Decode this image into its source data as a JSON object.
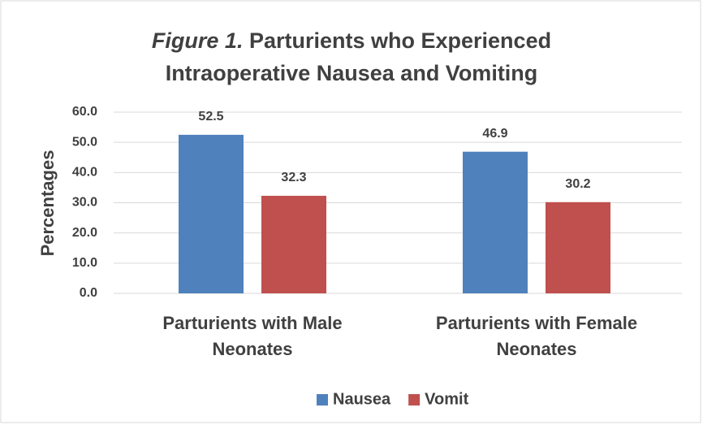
{
  "chart_data": {
    "type": "bar",
    "title_label": "Figure 1.",
    "title": "Parturients who Experienced Intraoperative Nausea and Vomiting",
    "ylabel": "Percentages",
    "categories": [
      "Parturients with Male Neonates",
      "Parturients with Female Neonates"
    ],
    "series": [
      {
        "name": "Nausea",
        "color": "#4f81bd",
        "values": [
          52.5,
          46.9
        ]
      },
      {
        "name": "Vomit",
        "color": "#c0504d",
        "values": [
          32.3,
          30.2
        ]
      }
    ],
    "ylim": [
      0,
      60
    ],
    "yticks": [
      {
        "value": 0,
        "label": "0.0"
      },
      {
        "value": 10,
        "label": "10.0"
      },
      {
        "value": 20,
        "label": "20.0"
      },
      {
        "value": 30,
        "label": "30.0"
      },
      {
        "value": 40,
        "label": "40.0"
      },
      {
        "value": 50,
        "label": "50.0"
      },
      {
        "value": 60,
        "label": "60.0"
      }
    ],
    "grid": true,
    "legend": "bottom"
  }
}
